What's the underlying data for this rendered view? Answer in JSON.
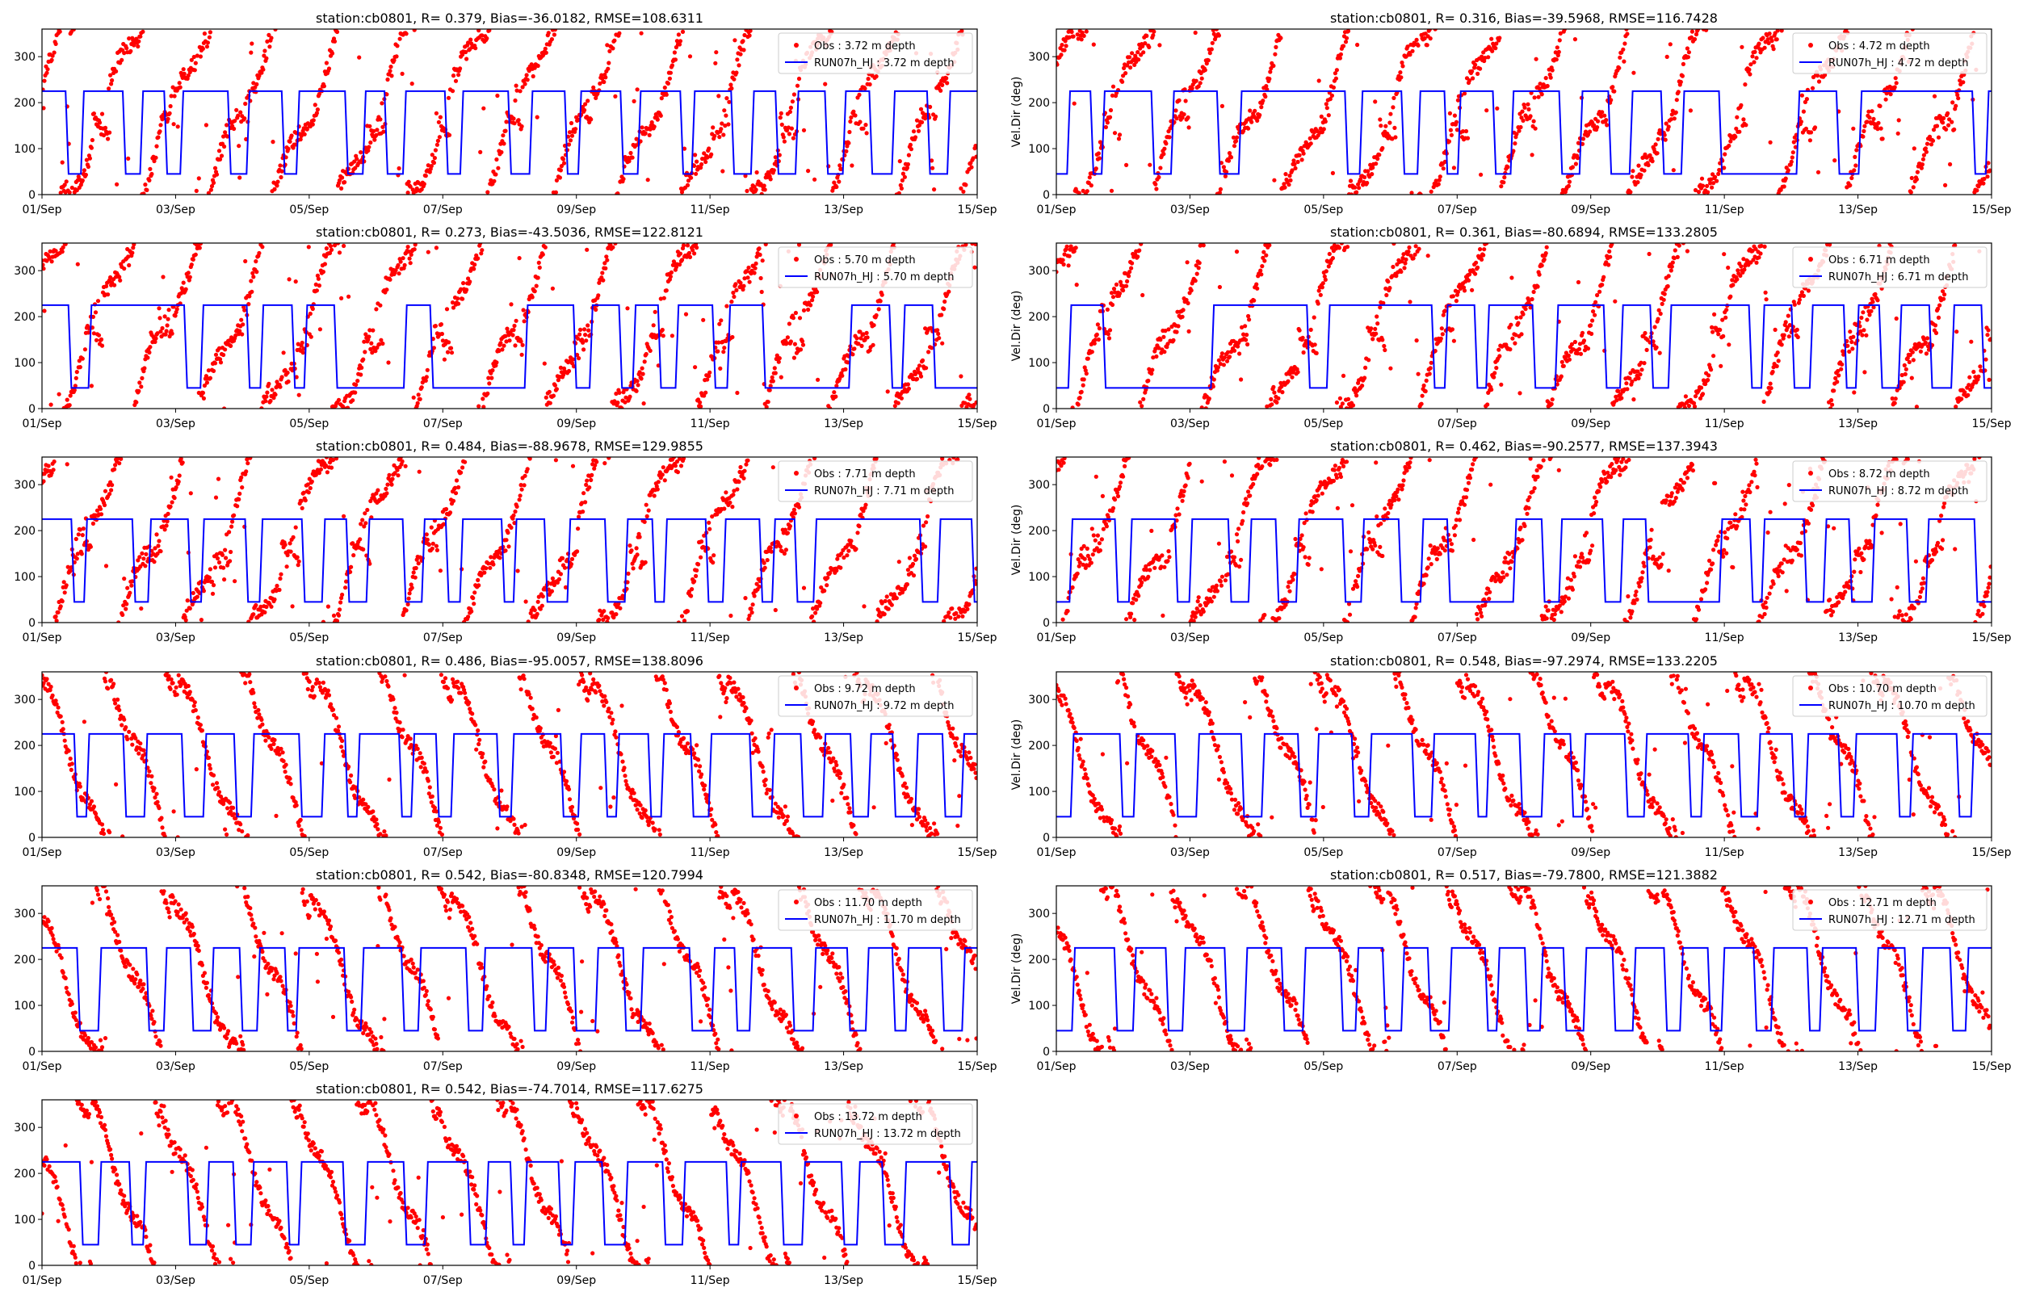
{
  "figure": {
    "background": "#ffffff"
  },
  "colors": {
    "obs": "#ff0000",
    "model": "#0000ff"
  },
  "x_ticks": [
    "01/Sep",
    "03/Sep",
    "05/Sep",
    "07/Sep",
    "09/Sep",
    "11/Sep",
    "13/Sep",
    "15/Sep"
  ],
  "y_ticks": [
    "0",
    "100",
    "200",
    "300"
  ],
  "chart_data": [
    {
      "type": "line+scatter",
      "title": "station:cb0801, R= 0.379, Bias=-36.0182, RMSE=108.6311",
      "ylabel": "",
      "xlim": [
        "01/Sep",
        "15/Sep"
      ],
      "ylim": [
        0,
        360
      ],
      "legend_placement": "top-right",
      "series": [
        {
          "name": "Obs : 3.72 m depth",
          "style": "scatter"
        },
        {
          "name": "RUN07h_HJ : 3.72 m depth",
          "style": "line",
          "levels": [
            45,
            225
          ]
        }
      ]
    },
    {
      "type": "line+scatter",
      "title": "station:cb0801, R= 0.316, Bias=-39.5968, RMSE=116.7428",
      "ylabel": "Vel.Dir (deg)",
      "xlim": [
        "01/Sep",
        "15/Sep"
      ],
      "ylim": [
        0,
        360
      ],
      "legend_placement": "top-right",
      "series": [
        {
          "name": "Obs : 4.72 m depth",
          "style": "scatter"
        },
        {
          "name": "RUN07h_HJ : 4.72 m depth",
          "style": "line",
          "levels": [
            45,
            225
          ]
        }
      ]
    },
    {
      "type": "line+scatter",
      "title": "station:cb0801, R= 0.273, Bias=-43.5036, RMSE=122.8121",
      "ylabel": "",
      "xlim": [
        "01/Sep",
        "15/Sep"
      ],
      "ylim": [
        0,
        360
      ],
      "legend_placement": "top-right",
      "series": [
        {
          "name": "Obs : 5.70 m depth",
          "style": "scatter"
        },
        {
          "name": "RUN07h_HJ : 5.70 m depth",
          "style": "line",
          "levels": [
            45,
            225
          ]
        }
      ]
    },
    {
      "type": "line+scatter",
      "title": "station:cb0801, R= 0.361, Bias=-80.6894, RMSE=133.2805",
      "ylabel": "Vel.Dir (deg)",
      "xlim": [
        "01/Sep",
        "15/Sep"
      ],
      "ylim": [
        0,
        360
      ],
      "legend_placement": "top-right",
      "series": [
        {
          "name": "Obs : 6.71 m depth",
          "style": "scatter"
        },
        {
          "name": "RUN07h_HJ : 6.71 m depth",
          "style": "line",
          "levels": [
            45,
            225
          ]
        }
      ]
    },
    {
      "type": "line+scatter",
      "title": "station:cb0801, R= 0.484, Bias=-88.9678, RMSE=129.9855",
      "ylabel": "",
      "xlim": [
        "01/Sep",
        "15/Sep"
      ],
      "ylim": [
        0,
        360
      ],
      "legend_placement": "top-right",
      "series": [
        {
          "name": "Obs : 7.71 m depth",
          "style": "scatter"
        },
        {
          "name": "RUN07h_HJ : 7.71 m depth",
          "style": "line",
          "levels": [
            45,
            225
          ]
        }
      ]
    },
    {
      "type": "line+scatter",
      "title": "station:cb0801, R= 0.462, Bias=-90.2577, RMSE=137.3943",
      "ylabel": "Vel.Dir (deg)",
      "xlim": [
        "01/Sep",
        "15/Sep"
      ],
      "ylim": [
        0,
        360
      ],
      "legend_placement": "top-right",
      "series": [
        {
          "name": "Obs : 8.72 m depth",
          "style": "scatter"
        },
        {
          "name": "RUN07h_HJ : 8.72 m depth",
          "style": "line",
          "levels": [
            45,
            225
          ]
        }
      ]
    },
    {
      "type": "line+scatter",
      "title": "station:cb0801, R= 0.486, Bias=-95.0057, RMSE=138.8096",
      "ylabel": "",
      "xlim": [
        "01/Sep",
        "15/Sep"
      ],
      "ylim": [
        0,
        360
      ],
      "legend_placement": "top-right",
      "series": [
        {
          "name": "Obs : 9.72 m depth",
          "style": "scatter"
        },
        {
          "name": "RUN07h_HJ : 9.72 m depth",
          "style": "line",
          "levels": [
            45,
            225
          ]
        }
      ]
    },
    {
      "type": "line+scatter",
      "title": "station:cb0801, R= 0.548, Bias=-97.2974, RMSE=133.2205",
      "ylabel": "Vel.Dir (deg)",
      "xlim": [
        "01/Sep",
        "15/Sep"
      ],
      "ylim": [
        0,
        360
      ],
      "legend_placement": "top-right",
      "series": [
        {
          "name": "Obs : 10.70 m depth",
          "style": "scatter"
        },
        {
          "name": "RUN07h_HJ : 10.70 m depth",
          "style": "line",
          "levels": [
            45,
            225
          ]
        }
      ]
    },
    {
      "type": "line+scatter",
      "title": "station:cb0801, R= 0.542, Bias=-80.8348, RMSE=120.7994",
      "ylabel": "",
      "xlim": [
        "01/Sep",
        "15/Sep"
      ],
      "ylim": [
        0,
        360
      ],
      "legend_placement": "top-right",
      "series": [
        {
          "name": "Obs : 11.70 m depth",
          "style": "scatter"
        },
        {
          "name": "RUN07h_HJ : 11.70 m depth",
          "style": "line",
          "levels": [
            45,
            225
          ]
        }
      ]
    },
    {
      "type": "line+scatter",
      "title": "station:cb0801, R= 0.517, Bias=-79.7800, RMSE=121.3882",
      "ylabel": "Vel.Dir (deg)",
      "xlim": [
        "01/Sep",
        "15/Sep"
      ],
      "ylim": [
        0,
        360
      ],
      "legend_placement": "top-right",
      "series": [
        {
          "name": "Obs : 12.71 m depth",
          "style": "scatter"
        },
        {
          "name": "RUN07h_HJ : 12.71 m depth",
          "style": "line",
          "levels": [
            45,
            225
          ]
        }
      ]
    },
    {
      "type": "line+scatter",
      "title": "station:cb0801, R= 0.542, Bias=-74.7014, RMSE=117.6275",
      "ylabel": "",
      "xlim": [
        "01/Sep",
        "15/Sep"
      ],
      "ylim": [
        0,
        360
      ],
      "legend_placement": "top-right",
      "series": [
        {
          "name": "Obs : 13.72 m depth",
          "style": "scatter"
        },
        {
          "name": "RUN07h_HJ : 13.72 m depth",
          "style": "line",
          "levels": [
            45,
            225
          ]
        }
      ]
    }
  ]
}
